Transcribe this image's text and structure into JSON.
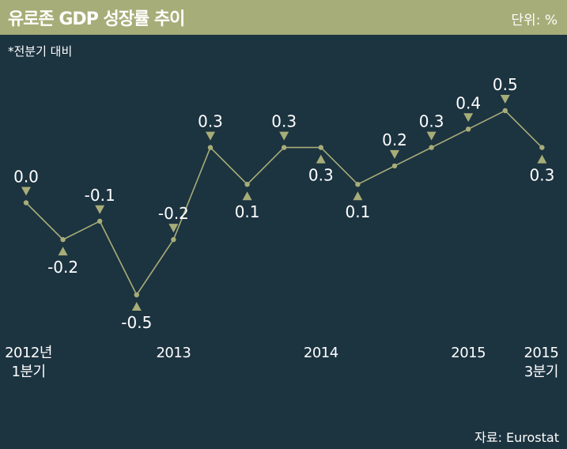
{
  "header": {
    "title": "유로존 GDP 성장률 추이",
    "unit": "단위: %"
  },
  "note": "*전분기 대비",
  "source": "자료: Eurostat",
  "colors": {
    "header_bg": "#a7ad78",
    "background": "#1c3340",
    "line": "#a7ad78",
    "marker": "#a7ad78",
    "text": "#ffffff"
  },
  "chart_data": {
    "type": "line",
    "title": "유로존 GDP 성장률 추이",
    "xlabel": "",
    "ylabel": "",
    "ylim": [
      -0.5,
      0.5
    ],
    "grid": false,
    "legend": "none",
    "x": [
      "2012년 1분기",
      "",
      "",
      "",
      "2013",
      "",
      "",
      "",
      "2014",
      "",
      "",
      "",
      "2015",
      "",
      "2015 3분기"
    ],
    "values": [
      0.0,
      -0.2,
      -0.1,
      -0.5,
      -0.2,
      0.3,
      0.1,
      0.3,
      0.3,
      0.1,
      0.2,
      0.3,
      0.4,
      0.5,
      0.3
    ],
    "value_labels": [
      "0.0",
      "-0.2",
      "-0.1",
      "-0.5",
      "-0.2",
      "0.3",
      "0.1",
      "0.3",
      "0.3",
      "0.1",
      "0.2",
      "0.3",
      "0.4",
      "0.5",
      "0.3"
    ],
    "x_tick_labels": [
      {
        "index": 0,
        "lines": [
          "2012년",
          "1분기"
        ]
      },
      {
        "index": 4,
        "lines": [
          "2013"
        ]
      },
      {
        "index": 8,
        "lines": [
          "2014"
        ]
      },
      {
        "index": 12,
        "lines": [
          "2015"
        ]
      },
      {
        "index": 14,
        "lines": [
          "2015",
          "3분기"
        ]
      }
    ]
  }
}
